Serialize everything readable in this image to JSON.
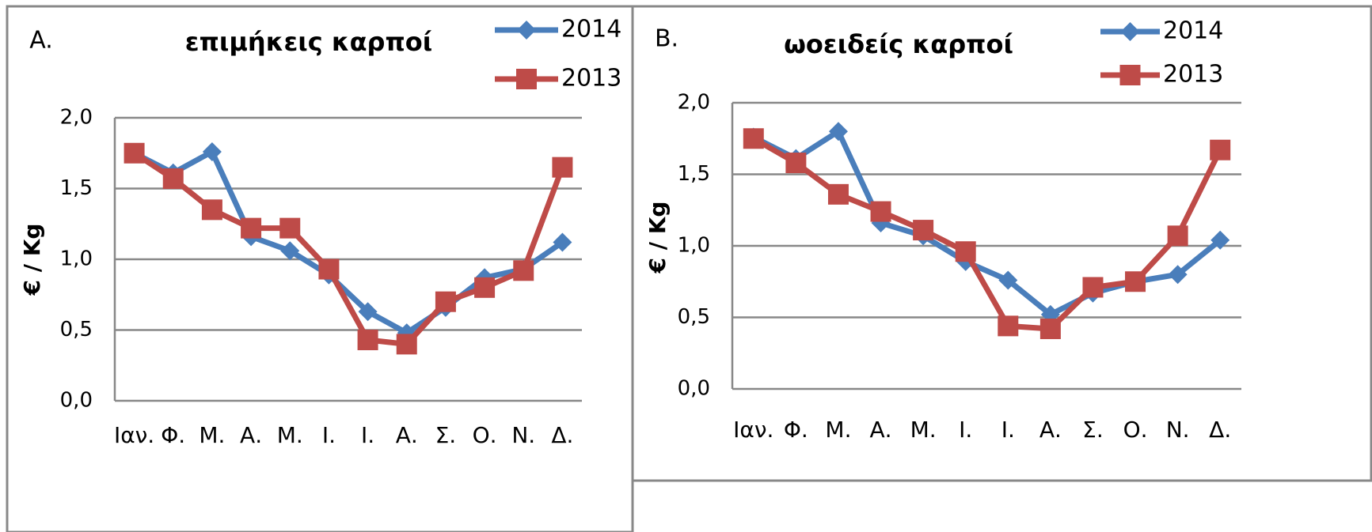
{
  "chart_data": [
    {
      "type": "line",
      "label": "A.",
      "title": "επιμήκεις καρποί",
      "y_label": "€ / Kg",
      "categories": [
        "Ιαν.",
        "Φ.",
        "Μ.",
        "Α.",
        "Μ.",
        "Ι.",
        "Ι.",
        "Α.",
        "Σ.",
        "Ο.",
        "Ν.",
        "Δ."
      ],
      "ylim": [
        0,
        2
      ],
      "yticks": [
        {
          "value": 0,
          "label": "0,0"
        },
        {
          "value": 0.5,
          "label": "0,5"
        },
        {
          "value": 1,
          "label": "1,0"
        },
        {
          "value": 1.5,
          "label": "1,5"
        },
        {
          "value": 2,
          "label": "2,0"
        }
      ],
      "grid": true,
      "legend": "top-right",
      "series": [
        {
          "name": "2014",
          "color": "#4a7ebb",
          "marker": "diamond",
          "values": [
            1.75,
            1.61,
            1.76,
            1.16,
            1.06,
            0.89,
            0.63,
            0.48,
            0.66,
            0.87,
            0.93,
            1.12
          ]
        },
        {
          "name": "2013",
          "color": "#be4b48",
          "marker": "square",
          "values": [
            1.75,
            1.57,
            1.35,
            1.22,
            1.22,
            0.93,
            0.43,
            0.4,
            0.7,
            0.8,
            0.92,
            1.65
          ]
        }
      ]
    },
    {
      "type": "line",
      "label": "B.",
      "title": "ωοειδείς καρποί",
      "y_label": "€ / Kg",
      "categories": [
        "Ιαν.",
        "Φ.",
        "Μ.",
        "Α.",
        "Μ.",
        "Ι.",
        "Ι.",
        "Α.",
        "Σ.",
        "Ο.",
        "Ν.",
        "Δ."
      ],
      "ylim": [
        0,
        2
      ],
      "yticks": [
        {
          "value": 0,
          "label": "0,0"
        },
        {
          "value": 0.5,
          "label": "0,5"
        },
        {
          "value": 1,
          "label": "1,0"
        },
        {
          "value": 1.5,
          "label": "1,5"
        },
        {
          "value": 2,
          "label": "2,0"
        }
      ],
      "grid": true,
      "legend": "top-right",
      "series": [
        {
          "name": "2014",
          "color": "#4a7ebb",
          "marker": "diamond",
          "values": [
            1.76,
            1.61,
            1.8,
            1.16,
            1.07,
            0.89,
            0.76,
            0.52,
            0.67,
            0.75,
            0.8,
            1.04
          ]
        },
        {
          "name": "2013",
          "color": "#be4b48",
          "marker": "square",
          "values": [
            1.75,
            1.58,
            1.36,
            1.24,
            1.11,
            0.96,
            0.44,
            0.42,
            0.71,
            0.75,
            1.07,
            1.67
          ]
        }
      ]
    }
  ]
}
